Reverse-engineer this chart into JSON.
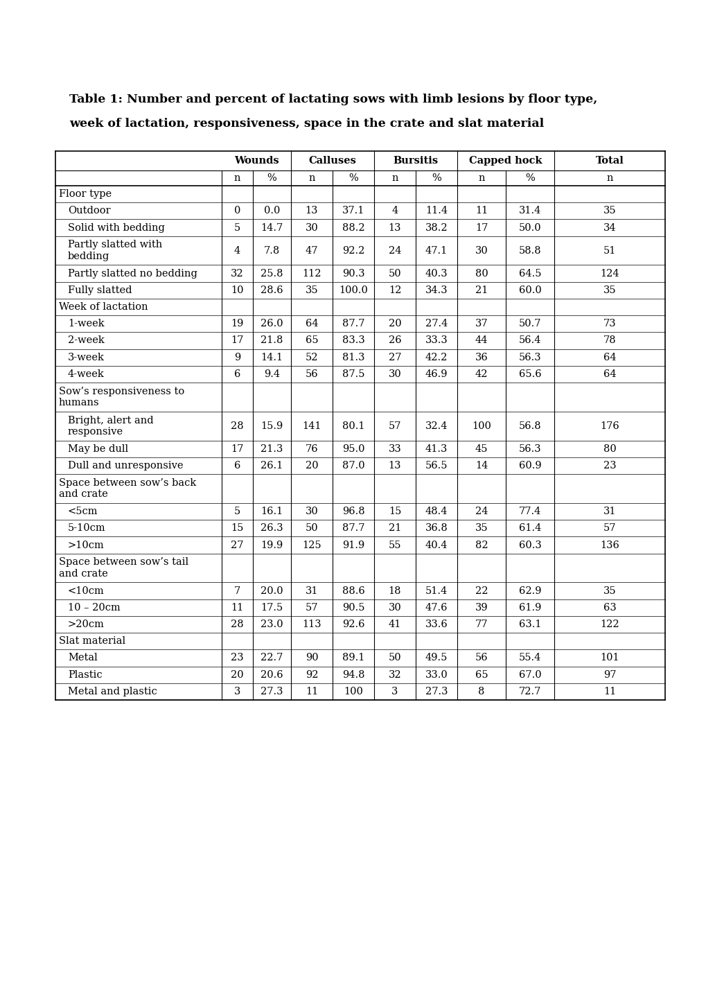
{
  "title_line1": "Table 1: Number and percent of lactating sows with limb lesions by floor type,",
  "title_line2": "week of lactation, responsiveness, space in the crate and slat material",
  "rows": [
    {
      "label": "Floor type",
      "indent": false,
      "is_section": true,
      "values": [
        "",
        "",
        "",
        "",
        "",
        "",
        "",
        "",
        ""
      ]
    },
    {
      "label": "Outdoor",
      "indent": true,
      "is_section": false,
      "values": [
        "0",
        "0.0",
        "13",
        "37.1",
        "4",
        "11.4",
        "11",
        "31.4",
        "35"
      ]
    },
    {
      "label": "Solid with bedding",
      "indent": true,
      "is_section": false,
      "values": [
        "5",
        "14.7",
        "30",
        "88.2",
        "13",
        "38.2",
        "17",
        "50.0",
        "34"
      ]
    },
    {
      "label": "Partly slatted with\nbedding",
      "indent": true,
      "is_section": false,
      "two_line": true,
      "values": [
        "4",
        "7.8",
        "47",
        "92.2",
        "24",
        "47.1",
        "30",
        "58.8",
        "51"
      ]
    },
    {
      "label": "Partly slatted no bedding",
      "indent": true,
      "is_section": false,
      "values": [
        "32",
        "25.8",
        "112",
        "90.3",
        "50",
        "40.3",
        "80",
        "64.5",
        "124"
      ]
    },
    {
      "label": "Fully slatted",
      "indent": true,
      "is_section": false,
      "values": [
        "10",
        "28.6",
        "35",
        "100.0",
        "12",
        "34.3",
        "21",
        "60.0",
        "35"
      ]
    },
    {
      "label": "Week of lactation",
      "indent": false,
      "is_section": true,
      "values": [
        "",
        "",
        "",
        "",
        "",
        "",
        "",
        "",
        ""
      ]
    },
    {
      "label": "1-week",
      "indent": true,
      "is_section": false,
      "values": [
        "19",
        "26.0",
        "64",
        "87.7",
        "20",
        "27.4",
        "37",
        "50.7",
        "73"
      ]
    },
    {
      "label": "2-week",
      "indent": true,
      "is_section": false,
      "values": [
        "17",
        "21.8",
        "65",
        "83.3",
        "26",
        "33.3",
        "44",
        "56.4",
        "78"
      ]
    },
    {
      "label": "3-week",
      "indent": true,
      "is_section": false,
      "values": [
        "9",
        "14.1",
        "52",
        "81.3",
        "27",
        "42.2",
        "36",
        "56.3",
        "64"
      ]
    },
    {
      "label": "4-week",
      "indent": true,
      "is_section": false,
      "values": [
        "6",
        "9.4",
        "56",
        "87.5",
        "30",
        "46.9",
        "42",
        "65.6",
        "64"
      ]
    },
    {
      "label": "Sow’s responsiveness to\nhumans",
      "indent": false,
      "is_section": true,
      "two_line": true,
      "values": [
        "",
        "",
        "",
        "",
        "",
        "",
        "",
        "",
        ""
      ]
    },
    {
      "label": "Bright, alert and\nresponsive",
      "indent": true,
      "is_section": false,
      "two_line": true,
      "values": [
        "28",
        "15.9",
        "141",
        "80.1",
        "57",
        "32.4",
        "100",
        "56.8",
        "176"
      ]
    },
    {
      "label": "May be dull",
      "indent": true,
      "is_section": false,
      "values": [
        "17",
        "21.3",
        "76",
        "95.0",
        "33",
        "41.3",
        "45",
        "56.3",
        "80"
      ]
    },
    {
      "label": "Dull and unresponsive",
      "indent": true,
      "is_section": false,
      "values": [
        "6",
        "26.1",
        "20",
        "87.0",
        "13",
        "56.5",
        "14",
        "60.9",
        "23"
      ]
    },
    {
      "label": "Space between sow’s back\nand crate",
      "indent": false,
      "is_section": true,
      "two_line": true,
      "values": [
        "",
        "",
        "",
        "",
        "",
        "",
        "",
        "",
        ""
      ]
    },
    {
      "label": "<5cm",
      "indent": true,
      "is_section": false,
      "values": [
        "5",
        "16.1",
        "30",
        "96.8",
        "15",
        "48.4",
        "24",
        "77.4",
        "31"
      ]
    },
    {
      "label": "5-10cm",
      "indent": true,
      "is_section": false,
      "values": [
        "15",
        "26.3",
        "50",
        "87.7",
        "21",
        "36.8",
        "35",
        "61.4",
        "57"
      ]
    },
    {
      "label": ">10cm",
      "indent": true,
      "is_section": false,
      "values": [
        "27",
        "19.9",
        "125",
        "91.9",
        "55",
        "40.4",
        "82",
        "60.3",
        "136"
      ]
    },
    {
      "label": "Space between sow’s tail\nand crate",
      "indent": false,
      "is_section": true,
      "two_line": true,
      "values": [
        "",
        "",
        "",
        "",
        "",
        "",
        "",
        "",
        ""
      ]
    },
    {
      "label": "<10cm",
      "indent": true,
      "is_section": false,
      "values": [
        "7",
        "20.0",
        "31",
        "88.6",
        "18",
        "51.4",
        "22",
        "62.9",
        "35"
      ]
    },
    {
      "label": "10 – 20cm",
      "indent": true,
      "is_section": false,
      "values": [
        "11",
        "17.5",
        "57",
        "90.5",
        "30",
        "47.6",
        "39",
        "61.9",
        "63"
      ]
    },
    {
      "label": ">20cm",
      "indent": true,
      "is_section": false,
      "values": [
        "28",
        "23.0",
        "113",
        "92.6",
        "41",
        "33.6",
        "77",
        "63.1",
        "122"
      ]
    },
    {
      "label": "Slat material",
      "indent": false,
      "is_section": true,
      "values": [
        "",
        "",
        "",
        "",
        "",
        "",
        "",
        "",
        ""
      ]
    },
    {
      "label": "Metal",
      "indent": true,
      "is_section": false,
      "values": [
        "23",
        "22.7",
        "90",
        "89.1",
        "50",
        "49.5",
        "56",
        "55.4",
        "101"
      ]
    },
    {
      "label": "Plastic",
      "indent": true,
      "is_section": false,
      "values": [
        "20",
        "20.6",
        "92",
        "94.8",
        "32",
        "33.0",
        "65",
        "67.0",
        "97"
      ]
    },
    {
      "label": "Metal and plastic",
      "indent": true,
      "is_section": false,
      "values": [
        "3",
        "27.3",
        "11",
        "100",
        "3",
        "27.3",
        "8",
        "72.7",
        "11"
      ]
    }
  ],
  "bg_color": "#ffffff",
  "text_color": "#000000",
  "title_fontsize": 12.5,
  "body_fontsize": 10.5,
  "header_fontsize": 10.5
}
